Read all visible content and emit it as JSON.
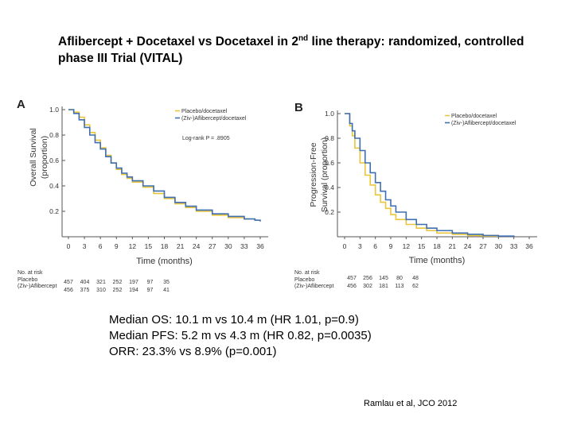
{
  "slide": {
    "title_part1": "Aflibercept + Docetaxel vs Docetaxel in 2",
    "title_sup": "nd",
    "title_part2": " line therapy: randomized, controlled phase III Trial (VITAL)",
    "stats": [
      "Median OS: 10.1 m vs 10.4 m (HR 1.01, p=0.9)",
      "Median PFS: 5.2 m vs 4.3 m (HR 0.82, p=0.0035)",
      "ORR: 23.3% vs 8.9% (p=0.001)"
    ],
    "citation": "Ramlau et al, JCO 2012"
  },
  "colors": {
    "placebo": "#e8c53a",
    "aflibercept": "#3f6fb0",
    "axis": "#555555"
  },
  "chart_data": [
    {
      "type": "line",
      "panel": "A",
      "xlabel": "Time (months)",
      "ylabel": "Overall Survival (proportion)",
      "ylabel_lines": [
        "Overall Survival",
        "(proportion)"
      ],
      "x_ticks": [
        0,
        3,
        6,
        9,
        12,
        15,
        18,
        21,
        24,
        27,
        30,
        33,
        36
      ],
      "y_ticks": [
        0.2,
        0.4,
        0.6,
        0.8,
        1.0
      ],
      "y_tick_labels": [
        "0.2",
        "0.4",
        "0.6",
        "0.8",
        "1.0"
      ],
      "xlim": [
        0,
        36
      ],
      "ylim": [
        0,
        1.0
      ],
      "annotation": "Log-rank P = .8905",
      "legend": [
        "Placebo/docetaxel",
        "(Ziv-)Aflibercept/docetaxel"
      ],
      "series": [
        {
          "name": "Placebo/docetaxel",
          "x": [
            0,
            1,
            2,
            3,
            4,
            5,
            6,
            7,
            8,
            9,
            10,
            11,
            12,
            14,
            16,
            18,
            20,
            22,
            24,
            27,
            30,
            33,
            34
          ],
          "y": [
            1.0,
            0.98,
            0.94,
            0.88,
            0.82,
            0.76,
            0.7,
            0.64,
            0.58,
            0.53,
            0.49,
            0.46,
            0.43,
            0.39,
            0.34,
            0.3,
            0.26,
            0.23,
            0.2,
            0.17,
            0.15,
            0.14,
            0.14
          ]
        },
        {
          "name": "(Ziv-)Aflibercept/docetaxel",
          "x": [
            0,
            1,
            2,
            3,
            4,
            5,
            6,
            7,
            8,
            9,
            10,
            11,
            12,
            14,
            16,
            18,
            20,
            22,
            24,
            27,
            30,
            33,
            35,
            36
          ],
          "y": [
            1.0,
            0.97,
            0.92,
            0.86,
            0.8,
            0.74,
            0.69,
            0.63,
            0.58,
            0.54,
            0.5,
            0.47,
            0.44,
            0.4,
            0.36,
            0.31,
            0.27,
            0.24,
            0.21,
            0.18,
            0.16,
            0.14,
            0.13,
            0.12
          ]
        }
      ],
      "risk_table": {
        "header": "No. at risk",
        "rows": [
          {
            "label": "Placebo",
            "values": [
              "457",
              "404",
              "321",
              "252",
              "197",
              "97",
              "35"
            ]
          },
          {
            "label": "(Ziv-)Aflibercept",
            "values": [
              "456",
              "375",
              "310",
              "252",
              "194",
              "97",
              "41"
            ]
          }
        ]
      }
    },
    {
      "type": "line",
      "panel": "B",
      "xlabel": "Time (months)",
      "ylabel": "Progression-Free Survival (proportion)",
      "ylabel_lines": [
        "Progression-Free",
        "Survival (proportion)"
      ],
      "x_ticks": [
        0,
        3,
        6,
        9,
        12,
        15,
        18,
        21,
        24,
        27,
        30,
        33,
        36
      ],
      "y_ticks": [
        0.2,
        0.4,
        0.6,
        0.8,
        1.0
      ],
      "y_tick_labels": [
        "0.2",
        "0.4",
        "0.6",
        "0.8",
        "1.0"
      ],
      "xlim": [
        0,
        36
      ],
      "ylim": [
        0,
        1.0
      ],
      "legend": [
        "Placebo/docetaxel",
        "(Ziv-)Aflibercept/docetaxel"
      ],
      "series": [
        {
          "name": "Placebo/docetaxel",
          "x": [
            0,
            1,
            1.5,
            2,
            3,
            4,
            5,
            6,
            7,
            8,
            9,
            10,
            12,
            14,
            16,
            18,
            21,
            24,
            27,
            30
          ],
          "y": [
            1.0,
            0.9,
            0.82,
            0.72,
            0.6,
            0.5,
            0.42,
            0.34,
            0.28,
            0.23,
            0.18,
            0.14,
            0.1,
            0.07,
            0.05,
            0.03,
            0.02,
            0.01,
            0.005,
            0.0
          ]
        },
        {
          "name": "(Ziv-)Aflibercept/docetaxel",
          "x": [
            0,
            1,
            1.5,
            2,
            3,
            4,
            5,
            6,
            7,
            8,
            9,
            10,
            12,
            14,
            16,
            18,
            21,
            24,
            27,
            30,
            33
          ],
          "y": [
            1.0,
            0.92,
            0.86,
            0.8,
            0.7,
            0.6,
            0.52,
            0.44,
            0.37,
            0.3,
            0.25,
            0.2,
            0.14,
            0.1,
            0.07,
            0.05,
            0.03,
            0.02,
            0.01,
            0.005,
            0.0
          ]
        }
      ],
      "risk_table": {
        "header": "No. at risk",
        "rows": [
          {
            "label": "Placebo",
            "values": [
              "457",
              "256",
              "145",
              "80",
              "48"
            ]
          },
          {
            "label": "(Ziv-)Aflibercept",
            "values": [
              "456",
              "302",
              "181",
              "113",
              "62"
            ]
          }
        ]
      }
    }
  ]
}
